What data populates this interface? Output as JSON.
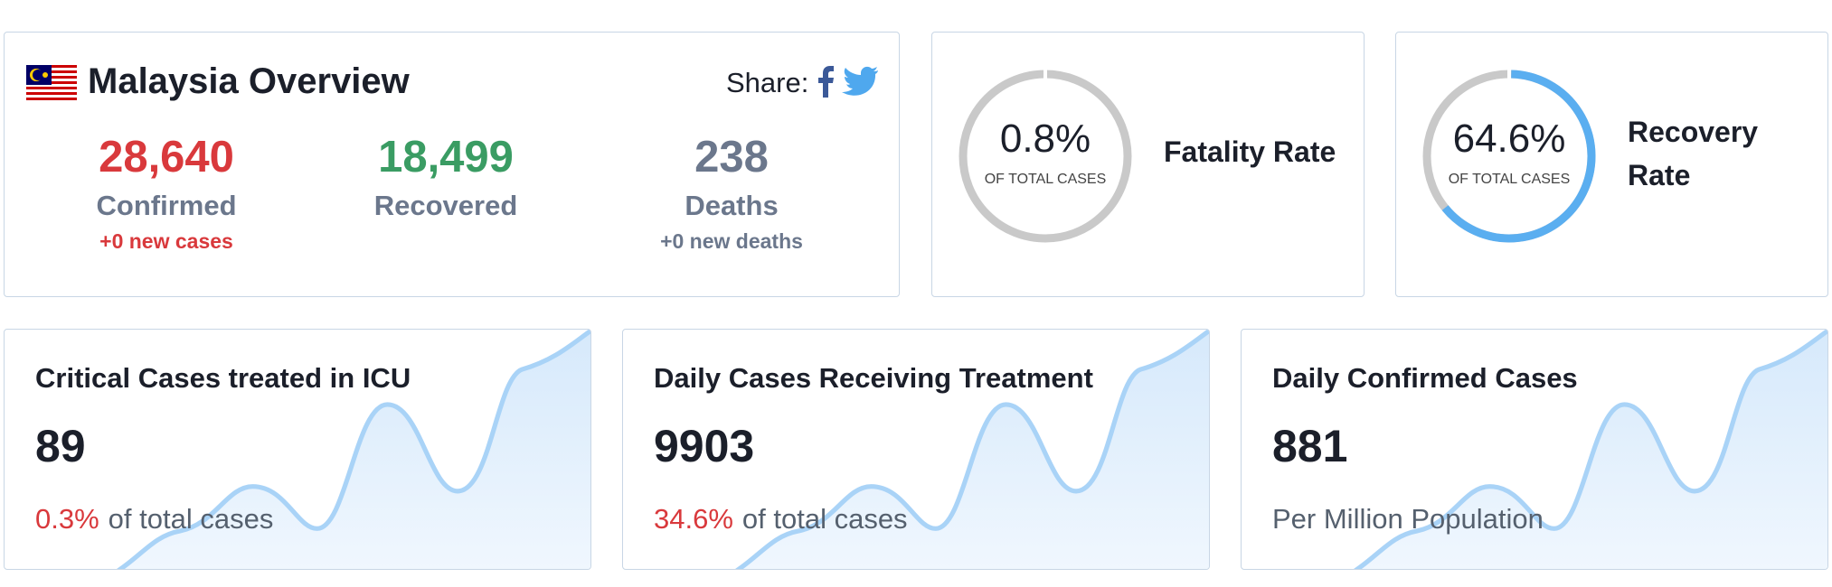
{
  "overview": {
    "title": "Malaysia Overview",
    "share": "Share:",
    "stats": [
      {
        "number": "28,640",
        "label": "Confirmed",
        "sub": "+0 new cases"
      },
      {
        "number": "18,499",
        "label": "Recovered"
      },
      {
        "number": "238",
        "label": "Deaths",
        "sub": "+0 new deaths"
      }
    ]
  },
  "rates": [
    {
      "value": 0.8,
      "label": "0.8%",
      "caption": "OF TOTAL CASES",
      "title": "Fatality Rate",
      "color": "#c9c9c9"
    },
    {
      "value": 64.6,
      "label": "64.6%",
      "caption": "OF TOTAL CASES",
      "title": "Recovery Rate",
      "color": "#5aaef0"
    }
  ],
  "cards": [
    {
      "title": "Critical Cases treated in ICU",
      "number": "89",
      "highlight": "0.3%",
      "note": "of total cases"
    },
    {
      "title": "Daily Cases Receiving Treatment",
      "number": "9903",
      "highlight": "34.6%",
      "note": "of total cases"
    },
    {
      "title": "Daily Confirmed Cases",
      "number": "881",
      "note": "Per Million Population"
    }
  ]
}
